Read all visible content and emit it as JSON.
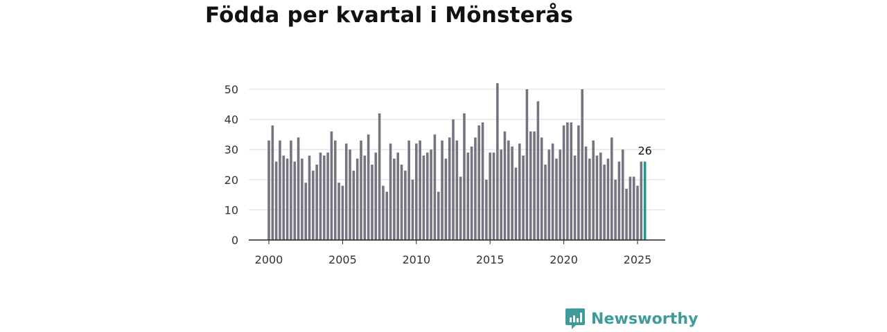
{
  "title": "Födda per kvartal i Mönsterås",
  "brand": {
    "name": "Newsworthy",
    "logo_icon": "newsworthy-logo-icon",
    "color": "#3e9b9b"
  },
  "chart_data": {
    "type": "bar",
    "title": "Födda per kvartal i Mönsterås",
    "xlabel": "",
    "ylabel": "",
    "ylim": [
      0,
      50
    ],
    "yticks": [
      0,
      10,
      20,
      30,
      40,
      50
    ],
    "xticks": [
      2000,
      2005,
      2010,
      2015,
      2020,
      2025
    ],
    "start_year": 2000,
    "quarters_per_year": 4,
    "grid": true,
    "bar_color": "#757480",
    "highlight_color": "#1a9a8a",
    "last_value_label": "26",
    "values": [
      33,
      38,
      26,
      33,
      28,
      27,
      33,
      26,
      34,
      27,
      19,
      28,
      23,
      25,
      29,
      28,
      29,
      36,
      33,
      19,
      18,
      32,
      30,
      23,
      27,
      33,
      28,
      35,
      25,
      29,
      42,
      18,
      16,
      32,
      27,
      29,
      25,
      23,
      33,
      20,
      32,
      33,
      28,
      29,
      30,
      35,
      16,
      33,
      27,
      34,
      40,
      33,
      21,
      42,
      29,
      31,
      34,
      38,
      39,
      20,
      29,
      29,
      52,
      30,
      36,
      33,
      31,
      24,
      32,
      28,
      50,
      36,
      36,
      46,
      34,
      25,
      30,
      32,
      27,
      30,
      38,
      39,
      39,
      28,
      38,
      50,
      31,
      27,
      33,
      28,
      29,
      25,
      27,
      34,
      20,
      26,
      30,
      17,
      21,
      21,
      18,
      26,
      26
    ]
  }
}
